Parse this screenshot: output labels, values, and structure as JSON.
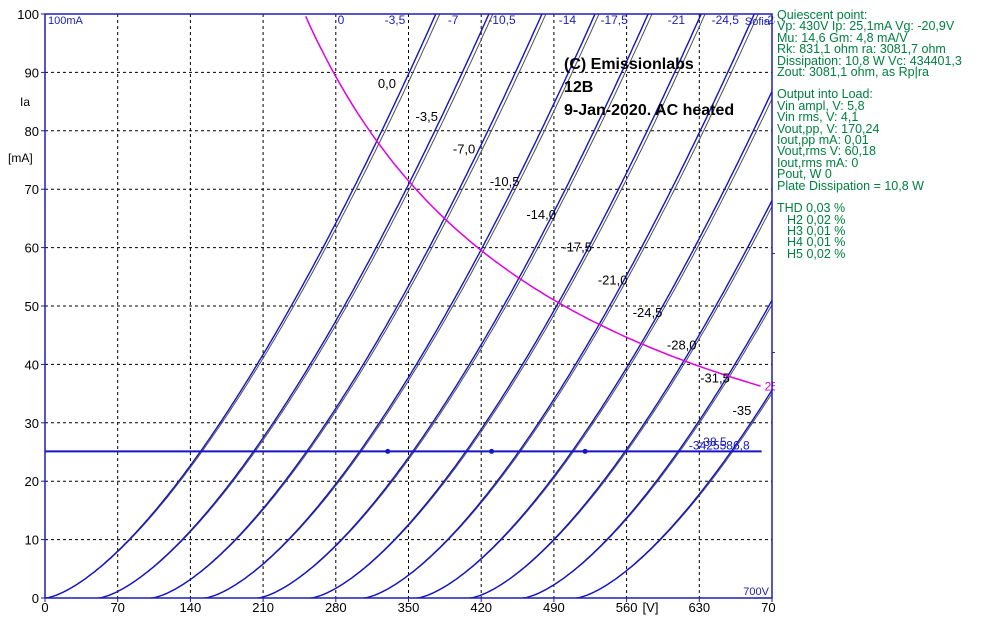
{
  "chart_data": {
    "type": "line",
    "title": "",
    "xlabel": "[V]",
    "ylabel": "Ia\n[mA]",
    "xlim": [
      0,
      700
    ],
    "ylim": [
      0,
      100
    ],
    "xticks": [
      0,
      70,
      140,
      210,
      280,
      350,
      420,
      490,
      560,
      630,
      700
    ],
    "yticks": [
      0,
      10,
      20,
      30,
      40,
      50,
      60,
      70,
      80,
      90,
      100
    ],
    "x_max_label": "700V",
    "y_max_label": "100mA",
    "corner_label": "Sofia",
    "grid": true,
    "annotation_lines": [
      "(C) Emissionlabs",
      "12B",
      "9-Jan-2020.  AC heated"
    ],
    "grid_bias_top_labels": [
      {
        "label": "0",
        "x": 285
      },
      {
        "label": "-3,5",
        "x": 337
      },
      {
        "label": "-7",
        "x": 393
      },
      {
        "label": "-10,5",
        "x": 440
      },
      {
        "label": "-14",
        "x": 503
      },
      {
        "label": "-17,5",
        "x": 548
      },
      {
        "label": "-21",
        "x": 608
      },
      {
        "label": "-24,5",
        "x": 655
      },
      {
        "label": "-28",
        "x": 700
      }
    ],
    "grid_bias_side_labels": [
      {
        "label": "-31,5",
        "x": 700,
        "y": 58
      },
      {
        "label": "-35",
        "x": 700,
        "y": 41
      },
      {
        "label": "-38,5",
        "x": 630,
        "y": 25.5
      }
    ],
    "measured_curves": [
      {
        "label": "0,0",
        "vg": 0,
        "a": 13.7,
        "w": 0
      },
      {
        "label": "-3,5",
        "vg": -3.5,
        "a": 13.7,
        "w": 0
      },
      {
        "label": "-7,0",
        "vg": -7,
        "a": 13.7,
        "w": 0
      },
      {
        "label": "-10,5",
        "vg": -10.5,
        "a": 13.7,
        "w": 0
      },
      {
        "label": "-14,0",
        "vg": -14,
        "a": 13.7,
        "w": 0
      },
      {
        "label": "-17,5",
        "vg": -17.5,
        "a": 13.7,
        "w": 0
      },
      {
        "label": "-21,0",
        "vg": -21,
        "a": 13.7,
        "w": 0
      },
      {
        "label": "-24,5",
        "vg": -24.5,
        "a": 13.7,
        "w": 0
      },
      {
        "label": "-28,0",
        "vg": -28,
        "a": 13.7,
        "w": 0
      },
      {
        "label": "-31,5",
        "vg": -31.5,
        "a": 13.7,
        "w": 0
      },
      {
        "label": "-35",
        "vg": -35,
        "a": 13.7,
        "w": 0
      }
    ],
    "dissipation_hyperbola": {
      "watts": 25,
      "label": "25"
    },
    "load_line": {
      "ia_ma": 25.1,
      "label": "-3425586,8"
    },
    "quiescent_point": {
      "va": 430,
      "ia": 25.1
    }
  },
  "side_panel": {
    "quiescent": {
      "title": "Quiescent point:",
      "l1": "Vp: 430V  Ip: 25,1mA  Vg: -20,9V",
      "l2": "Mu: 14,6 Gm: 4,8 mA/V",
      "l3": "Rk: 831,1 ohm ra: 3081,7 ohm",
      "l4": "Dissipation: 10,8 W Vc: 434401,3",
      "l5": "Zout: 3081,1 ohm, as Rp|ra"
    },
    "output": {
      "title": "Output into Load:",
      "l1": "Vin ampl, V: 5,8",
      "l2": "Vin rms,  V: 4,1",
      "l3": "Vout,pp,  V: 170,24",
      "l4": "Iout,pp  mA: 0,01",
      "l5": "Vout,rms  V: 60,18",
      "l6": "Iout,rms  mA: 0",
      "l7": "Pout, W      0",
      "l8": "Plate Dissipation = 10,8 W"
    },
    "thd": {
      "t": "THD 0,03 %",
      "h2": "H2 0,02 %",
      "h3": "H3 0,01 %",
      "h4": "H4 0,01 %",
      "h5": "H5 0,02 %"
    }
  },
  "colors": {
    "axis": "#1e1eb4",
    "curve": "#1414c8",
    "hyperbola": "#e000e0",
    "panel_text": "#008040",
    "grid": "#000000"
  }
}
